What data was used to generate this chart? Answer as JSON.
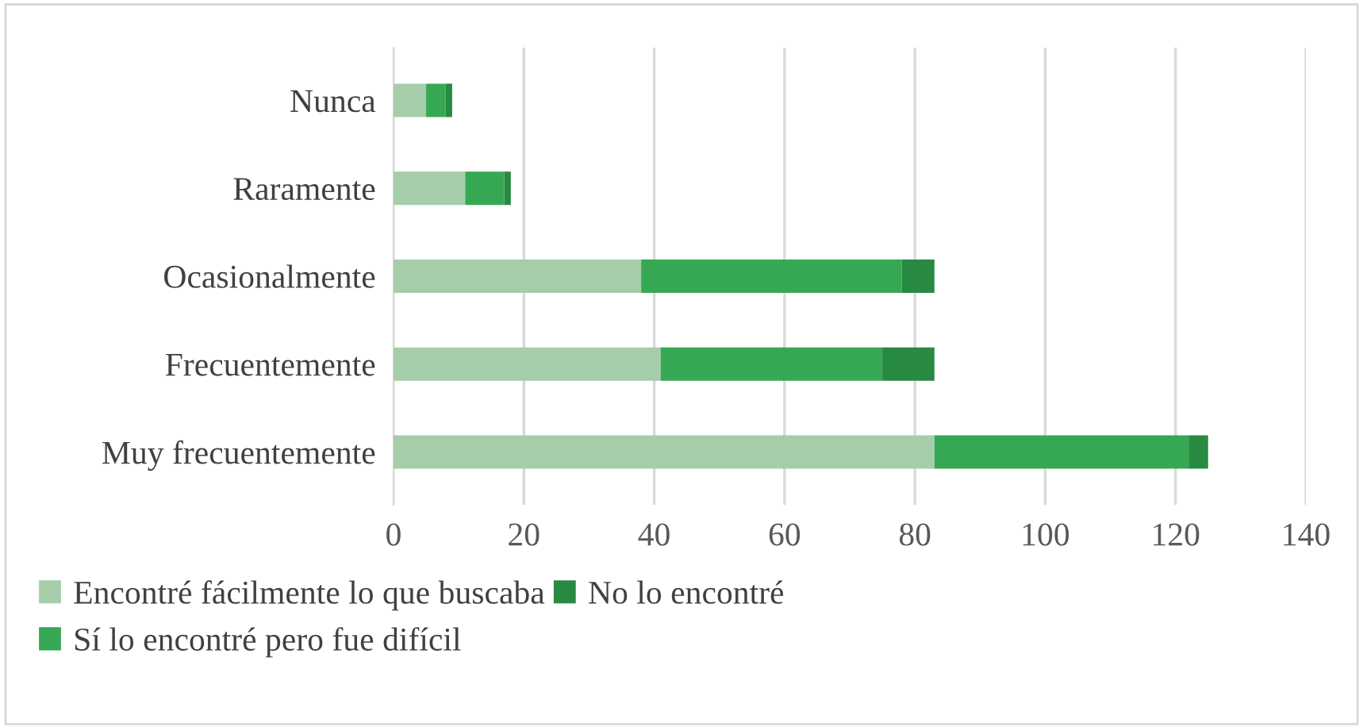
{
  "chart_data": {
    "type": "bar",
    "orientation": "horizontal",
    "stacked": true,
    "categories": [
      "Nunca",
      "Raramente",
      "Ocasionalmente",
      "Frecuentemente",
      "Muy frecuentemente"
    ],
    "series": [
      {
        "name": "Encontré fácilmente lo que buscaba",
        "color": "#a6cdaa",
        "values": [
          5,
          11,
          38,
          41,
          83
        ]
      },
      {
        "name": "Sí lo encontré pero fue difícil",
        "color": "#36a853",
        "values": [
          3,
          6,
          40,
          34,
          39
        ]
      },
      {
        "name": "No lo encontré",
        "color": "#288a42",
        "values": [
          1,
          1,
          5,
          8,
          3
        ]
      }
    ],
    "xlim": [
      0,
      140
    ],
    "xticks": [
      0,
      20,
      40,
      60,
      80,
      100,
      120,
      140
    ],
    "grid": "x",
    "legend": "bottom"
  }
}
